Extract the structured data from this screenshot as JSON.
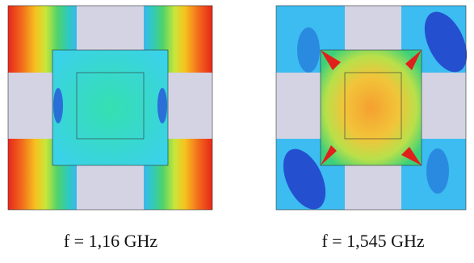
{
  "panels": [
    {
      "caption": "f = 1,16 GHz"
    },
    {
      "caption": "f = 1,545 GHz"
    }
  ]
}
